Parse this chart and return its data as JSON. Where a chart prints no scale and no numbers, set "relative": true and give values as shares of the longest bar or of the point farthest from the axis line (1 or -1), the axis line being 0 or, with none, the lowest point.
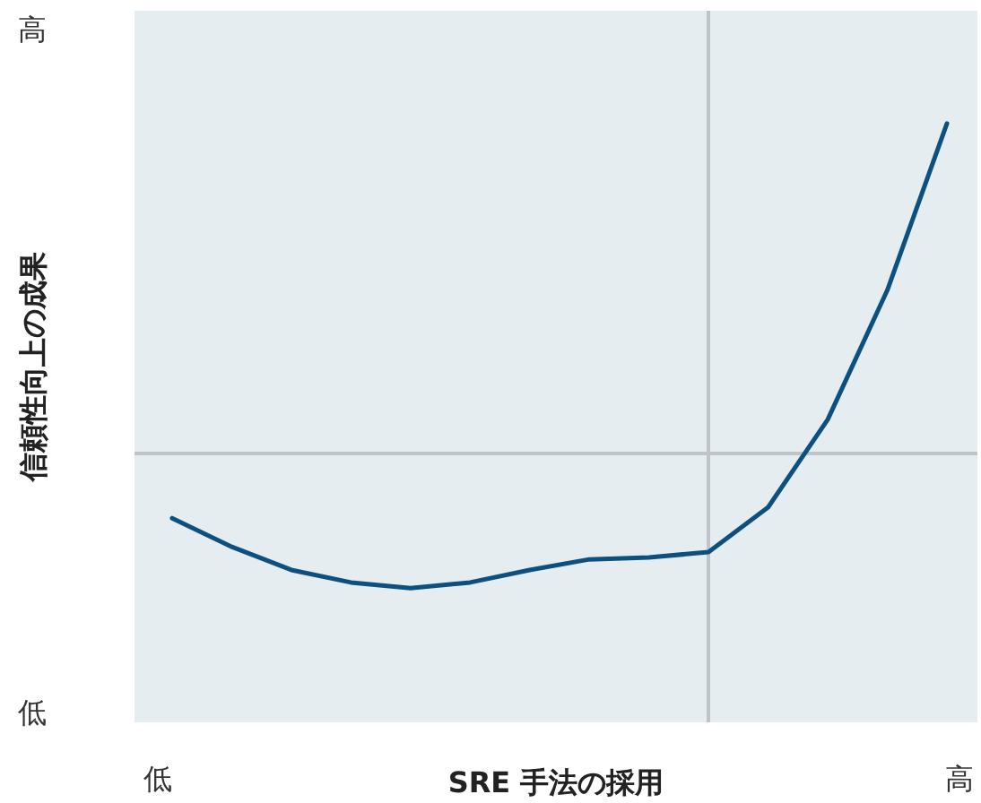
{
  "chart_data": {
    "type": "line",
    "relative": true,
    "ylabel": "信頼性向上の成果",
    "categories": [
      null,
      null,
      null,
      null,
      null,
      null,
      null,
      null,
      null,
      null,
      null,
      null,
      null,
      null
    ],
    "series": [
      {
        "color": "#0d5080",
        "values": [
          -0.196,
          -0.283,
          -0.353,
          -0.391,
          -0.408,
          -0.391,
          -0.353,
          -0.321,
          -0.315,
          -0.299,
          -0.163,
          0.103,
          0.495,
          1
        ]
      }
    ],
    "annotations": [
      "低",
      "高",
      "低",
      "高",
      "SRE 手法の採用"
    ],
    "marker": "none",
    "line_style": "solid"
  }
}
